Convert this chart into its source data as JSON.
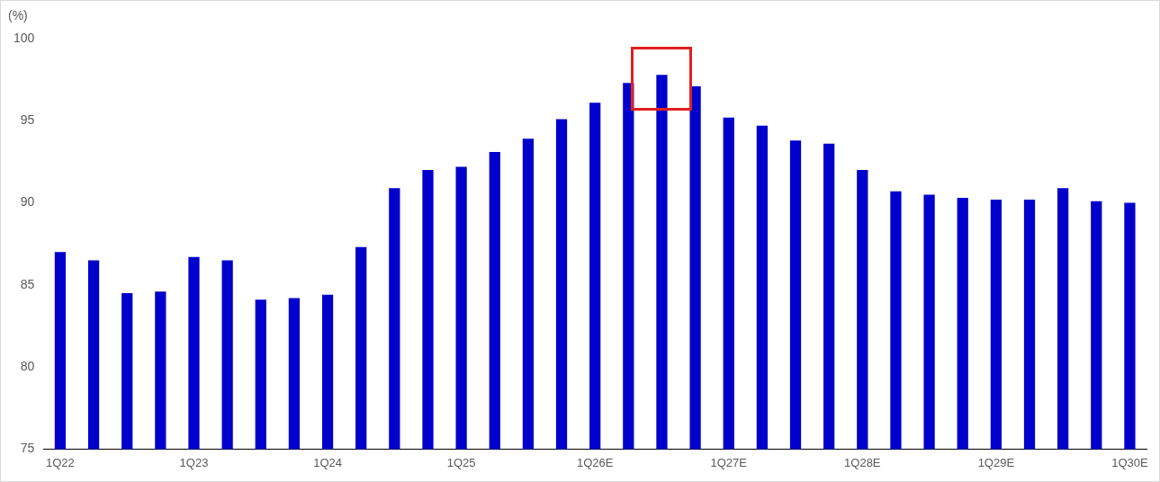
{
  "chart_data": {
    "type": "bar",
    "ylabel": "(%)",
    "categories": [
      "1Q22",
      null,
      null,
      null,
      "1Q23",
      null,
      null,
      null,
      "1Q24",
      null,
      null,
      null,
      "1Q25",
      null,
      null,
      null,
      "1Q26E",
      null,
      null,
      null,
      "1Q27E",
      null,
      null,
      null,
      "1Q28E",
      null,
      null,
      null,
      "1Q29E",
      null,
      null,
      null,
      "1Q30E"
    ],
    "values": [
      87.0,
      86.5,
      84.5,
      84.6,
      86.7,
      86.5,
      84.1,
      84.2,
      84.4,
      87.3,
      90.9,
      92.0,
      92.2,
      93.1,
      93.9,
      95.1,
      96.1,
      97.3,
      97.8,
      97.1,
      95.2,
      94.7,
      93.8,
      93.6,
      92.0,
      90.7,
      90.5,
      90.3,
      90.2,
      90.2,
      90.9,
      90.1,
      90.0
    ],
    "color": "#0000cc",
    "ylim": [
      75,
      100
    ],
    "yticks": [
      75,
      80,
      85,
      90,
      95,
      100
    ],
    "grid": false,
    "legend": false
  }
}
